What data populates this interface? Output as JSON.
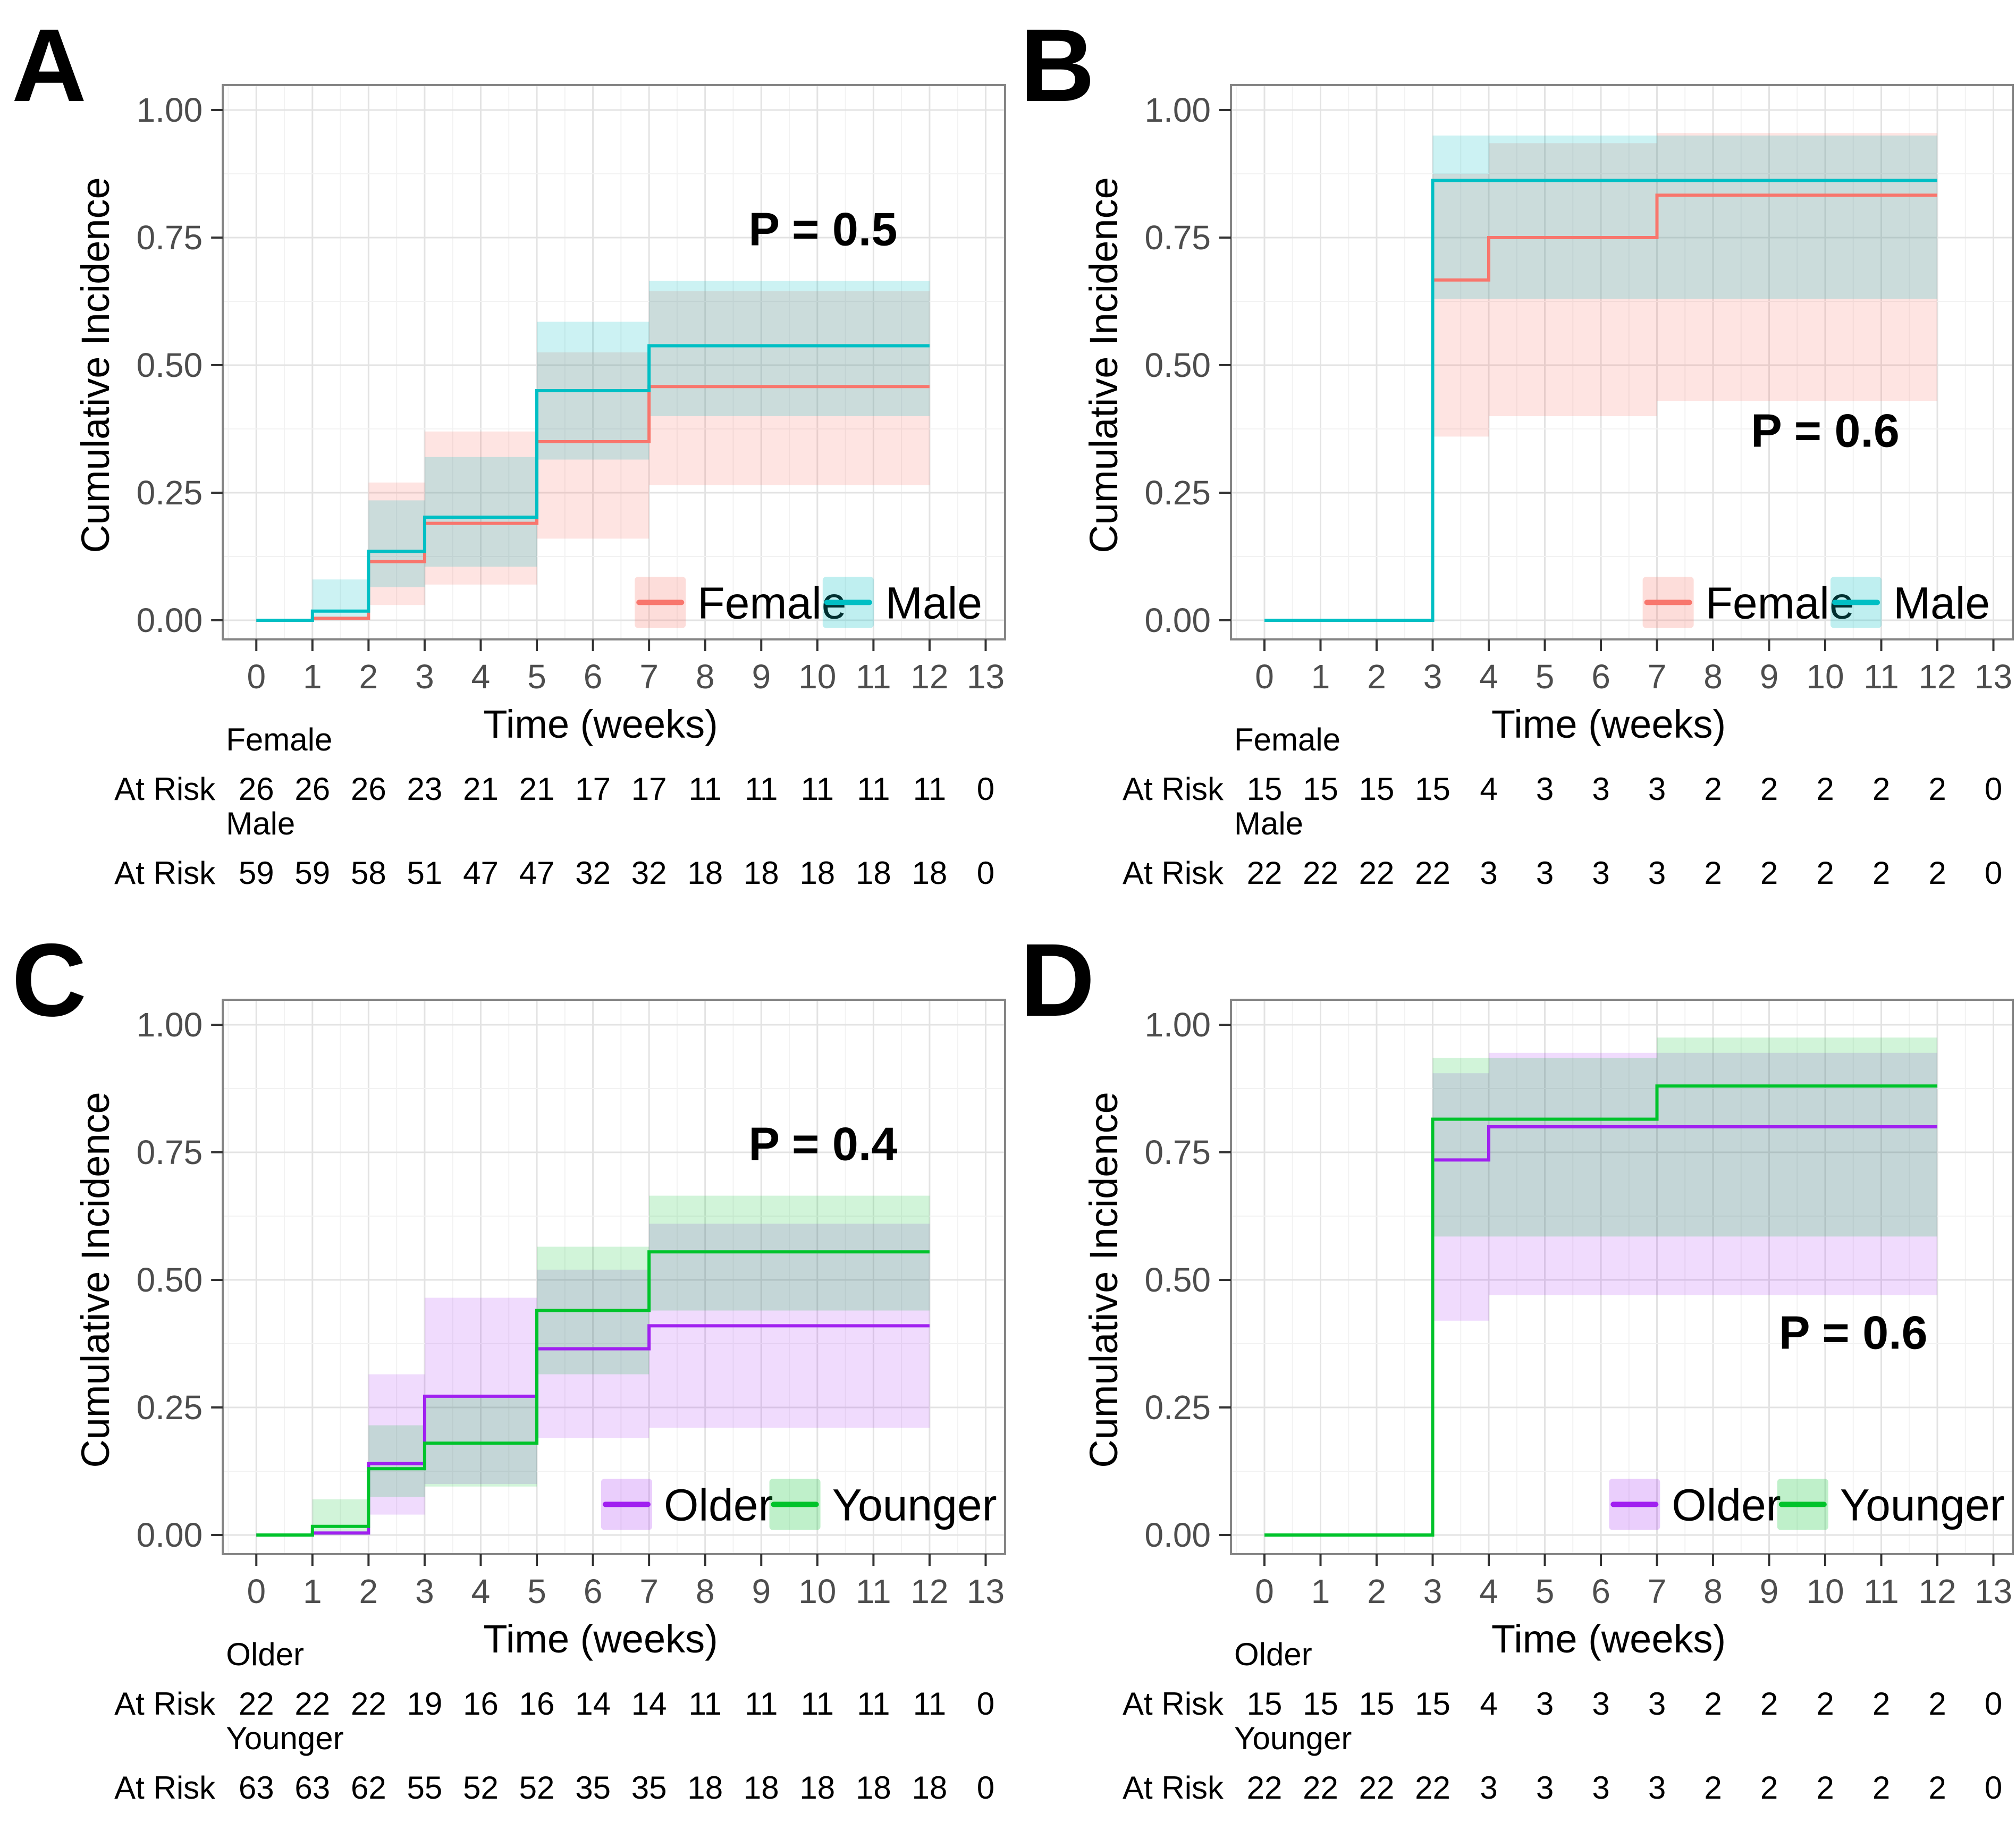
{
  "figure": {
    "x_axis_label": "Time (weeks)",
    "y_axis_label": "Cumulative Incidence",
    "at_risk_label": "At Risk",
    "x_ticks": [
      "0",
      "1",
      "2",
      "3",
      "4",
      "5",
      "6",
      "7",
      "8",
      "9",
      "10",
      "11",
      "12",
      "13"
    ],
    "y_ticks": [
      {
        "v": 0.0,
        "label": "0.00"
      },
      {
        "v": 0.25,
        "label": "0.25"
      },
      {
        "v": 0.5,
        "label": "0.50"
      },
      {
        "v": 0.75,
        "label": "0.75"
      },
      {
        "v": 1.0,
        "label": "1.00"
      }
    ]
  },
  "colors": {
    "female_line": "#F8766D",
    "male_line": "#00BFC4",
    "older_line": "#A020F0",
    "younger_line": "#00C32B",
    "female_band": "rgba(248,118,109,0.20)",
    "male_band": "rgba(0,191,196,0.20)",
    "older_band": "rgba(160,32,240,0.16)",
    "younger_band": "rgba(0,195,43,0.18)",
    "grid_major": "#e3e3e3",
    "grid_minor": "#f2f2f2",
    "panel_border": "#858585",
    "tick_mark": "#333333",
    "tick_label": "#4d4d4d",
    "text": "#000000"
  },
  "chart_data": [
    {
      "panel": "A",
      "type": "line",
      "subtype": "step-cumulative-incidence",
      "p_value_label": "P = 0.5",
      "p_pos": {
        "x": 10.1,
        "y": 0.735
      },
      "xlabel": "Time (weeks)",
      "ylabel": "Cumulative Incidence",
      "xlim": [
        0,
        13
      ],
      "ylim": [
        0,
        1
      ],
      "legend_y": 0.035,
      "series": [
        {
          "name": "Female",
          "color": "#F8766D",
          "band_color": "rgba(248,118,109,0.20)",
          "legend_fill": "rgba(248,118,109,0.25)",
          "legend_x": 7.2,
          "steps": [
            [
              0,
              0
            ],
            [
              1,
              0.004
            ],
            [
              2,
              0.115
            ],
            [
              3,
              0.19
            ],
            [
              5,
              0.35
            ],
            [
              7,
              0.458
            ]
          ],
          "end_x": 12,
          "band": [
            [
              2,
              3,
              0.03,
              0.27
            ],
            [
              3,
              5,
              0.07,
              0.37
            ],
            [
              5,
              7,
              0.16,
              0.525
            ],
            [
              7,
              12,
              0.265,
              0.645
            ]
          ]
        },
        {
          "name": "Male",
          "color": "#00BFC4",
          "band_color": "rgba(0,191,196,0.20)",
          "legend_fill": "rgba(0,191,196,0.25)",
          "legend_x": 10.55,
          "steps": [
            [
              0,
              0
            ],
            [
              1,
              0.018
            ],
            [
              2,
              0.135
            ],
            [
              3,
              0.202
            ],
            [
              5,
              0.45
            ],
            [
              7,
              0.538
            ]
          ],
          "end_x": 12,
          "band": [
            [
              1,
              2,
              0.0,
              0.08
            ],
            [
              2,
              3,
              0.065,
              0.235
            ],
            [
              3,
              5,
              0.105,
              0.32
            ],
            [
              5,
              7,
              0.315,
              0.585
            ],
            [
              7,
              12,
              0.4,
              0.665
            ]
          ]
        }
      ],
      "at_risk": [
        {
          "group": "Female",
          "label": "At Risk",
          "counts": [
            "26",
            "26",
            "26",
            "23",
            "21",
            "21",
            "17",
            "17",
            "11",
            "11",
            "11",
            "11",
            "11",
            "0"
          ]
        },
        {
          "group": "Male",
          "label": "At Risk",
          "counts": [
            "59",
            "59",
            "58",
            "51",
            "47",
            "47",
            "32",
            "32",
            "18",
            "18",
            "18",
            "18",
            "18",
            "0"
          ]
        }
      ]
    },
    {
      "panel": "B",
      "type": "line",
      "subtype": "step-cumulative-incidence",
      "p_value_label": "P = 0.6",
      "p_pos": {
        "x": 10.0,
        "y": 0.34
      },
      "xlabel": "Time (weeks)",
      "ylabel": "Cumulative Incidence",
      "xlim": [
        0,
        13
      ],
      "ylim": [
        0,
        1
      ],
      "legend_y": 0.035,
      "series": [
        {
          "name": "Female",
          "color": "#F8766D",
          "band_color": "rgba(248,118,109,0.20)",
          "legend_fill": "rgba(248,118,109,0.25)",
          "legend_x": 7.2,
          "steps": [
            [
              0,
              0
            ],
            [
              3,
              0.667
            ],
            [
              4,
              0.75
            ],
            [
              7,
              0.833
            ]
          ],
          "end_x": 12,
          "band": [
            [
              3,
              4,
              0.36,
              0.875
            ],
            [
              4,
              7,
              0.4,
              0.935
            ],
            [
              7,
              12,
              0.43,
              0.955
            ]
          ]
        },
        {
          "name": "Male",
          "color": "#00BFC4",
          "band_color": "rgba(0,191,196,0.20)",
          "legend_fill": "rgba(0,191,196,0.25)",
          "legend_x": 10.55,
          "steps": [
            [
              0,
              0
            ],
            [
              3,
              0.862
            ]
          ],
          "end_x": 12,
          "band": [
            [
              3,
              12,
              0.63,
              0.95
            ]
          ]
        }
      ],
      "at_risk": [
        {
          "group": "Female",
          "label": "At Risk",
          "counts": [
            "15",
            "15",
            "15",
            "15",
            "4",
            "3",
            "3",
            "3",
            "2",
            "2",
            "2",
            "2",
            "2",
            "0"
          ]
        },
        {
          "group": "Male",
          "label": "At Risk",
          "counts": [
            "22",
            "22",
            "22",
            "22",
            "3",
            "3",
            "3",
            "3",
            "2",
            "2",
            "2",
            "2",
            "2",
            "0"
          ]
        }
      ]
    },
    {
      "panel": "C",
      "type": "line",
      "subtype": "step-cumulative-incidence",
      "p_value_label": "P = 0.4",
      "p_pos": {
        "x": 10.1,
        "y": 0.735
      },
      "xlabel": "Time (weeks)",
      "ylabel": "Cumulative Incidence",
      "xlim": [
        0,
        13
      ],
      "ylim": [
        0,
        1
      ],
      "legend_y": 0.06,
      "series": [
        {
          "name": "Older",
          "color": "#A020F0",
          "band_color": "rgba(160,32,240,0.16)",
          "legend_fill": "rgba(160,32,240,0.22)",
          "legend_x": 6.6,
          "steps": [
            [
              0,
              0
            ],
            [
              1,
              0.004
            ],
            [
              2,
              0.14
            ],
            [
              3,
              0.272
            ],
            [
              5,
              0.365
            ],
            [
              7,
              0.41
            ]
          ],
          "end_x": 12,
          "band": [
            [
              2,
              3,
              0.04,
              0.315
            ],
            [
              3,
              5,
              0.1,
              0.465
            ],
            [
              5,
              7,
              0.19,
              0.52
            ],
            [
              7,
              12,
              0.21,
              0.61
            ]
          ]
        },
        {
          "name": "Younger",
          "color": "#00C32B",
          "band_color": "rgba(0,195,43,0.18)",
          "legend_fill": "rgba(0,195,43,0.25)",
          "legend_x": 9.6,
          "steps": [
            [
              0,
              0
            ],
            [
              1,
              0.017
            ],
            [
              2,
              0.13
            ],
            [
              3,
              0.18
            ],
            [
              5,
              0.44
            ],
            [
              7,
              0.555
            ]
          ],
          "end_x": 12,
          "band": [
            [
              1,
              2,
              0.0,
              0.07
            ],
            [
              2,
              3,
              0.075,
              0.215
            ],
            [
              3,
              5,
              0.095,
              0.275
            ],
            [
              5,
              7,
              0.315,
              0.565
            ],
            [
              7,
              12,
              0.44,
              0.665
            ]
          ]
        }
      ],
      "at_risk": [
        {
          "group": "Older",
          "label": "At Risk",
          "counts": [
            "22",
            "22",
            "22",
            "19",
            "16",
            "16",
            "14",
            "14",
            "11",
            "11",
            "11",
            "11",
            "11",
            "0"
          ]
        },
        {
          "group": "Younger",
          "label": "At Risk",
          "counts": [
            "63",
            "63",
            "62",
            "55",
            "52",
            "52",
            "35",
            "35",
            "18",
            "18",
            "18",
            "18",
            "18",
            "0"
          ]
        }
      ]
    },
    {
      "panel": "D",
      "type": "line",
      "subtype": "step-cumulative-incidence",
      "p_value_label": "P = 0.6",
      "p_pos": {
        "x": 10.5,
        "y": 0.365
      },
      "xlabel": "Time (weeks)",
      "ylabel": "Cumulative Incidence",
      "xlim": [
        0,
        13
      ],
      "ylim": [
        0,
        1
      ],
      "legend_y": 0.06,
      "series": [
        {
          "name": "Older",
          "color": "#A020F0",
          "band_color": "rgba(160,32,240,0.16)",
          "legend_fill": "rgba(160,32,240,0.22)",
          "legend_x": 6.6,
          "steps": [
            [
              0,
              0
            ],
            [
              3,
              0.735
            ],
            [
              4,
              0.8
            ]
          ],
          "end_x": 12,
          "band": [
            [
              3,
              4,
              0.42,
              0.905
            ],
            [
              4,
              12,
              0.47,
              0.945
            ]
          ]
        },
        {
          "name": "Younger",
          "color": "#00C32B",
          "band_color": "rgba(0,195,43,0.18)",
          "legend_fill": "rgba(0,195,43,0.25)",
          "legend_x": 9.6,
          "steps": [
            [
              0,
              0
            ],
            [
              3,
              0.815
            ],
            [
              7,
              0.88
            ]
          ],
          "end_x": 12,
          "band": [
            [
              3,
              7,
              0.585,
              0.935
            ],
            [
              7,
              12,
              0.585,
              0.975
            ]
          ]
        }
      ],
      "at_risk": [
        {
          "group": "Older",
          "label": "At Risk",
          "counts": [
            "15",
            "15",
            "15",
            "15",
            "4",
            "3",
            "3",
            "3",
            "2",
            "2",
            "2",
            "2",
            "2",
            "0"
          ]
        },
        {
          "group": "Younger",
          "label": "At Risk",
          "counts": [
            "22",
            "22",
            "22",
            "22",
            "3",
            "3",
            "3",
            "3",
            "2",
            "2",
            "2",
            "2",
            "2",
            "0"
          ]
        }
      ]
    }
  ]
}
